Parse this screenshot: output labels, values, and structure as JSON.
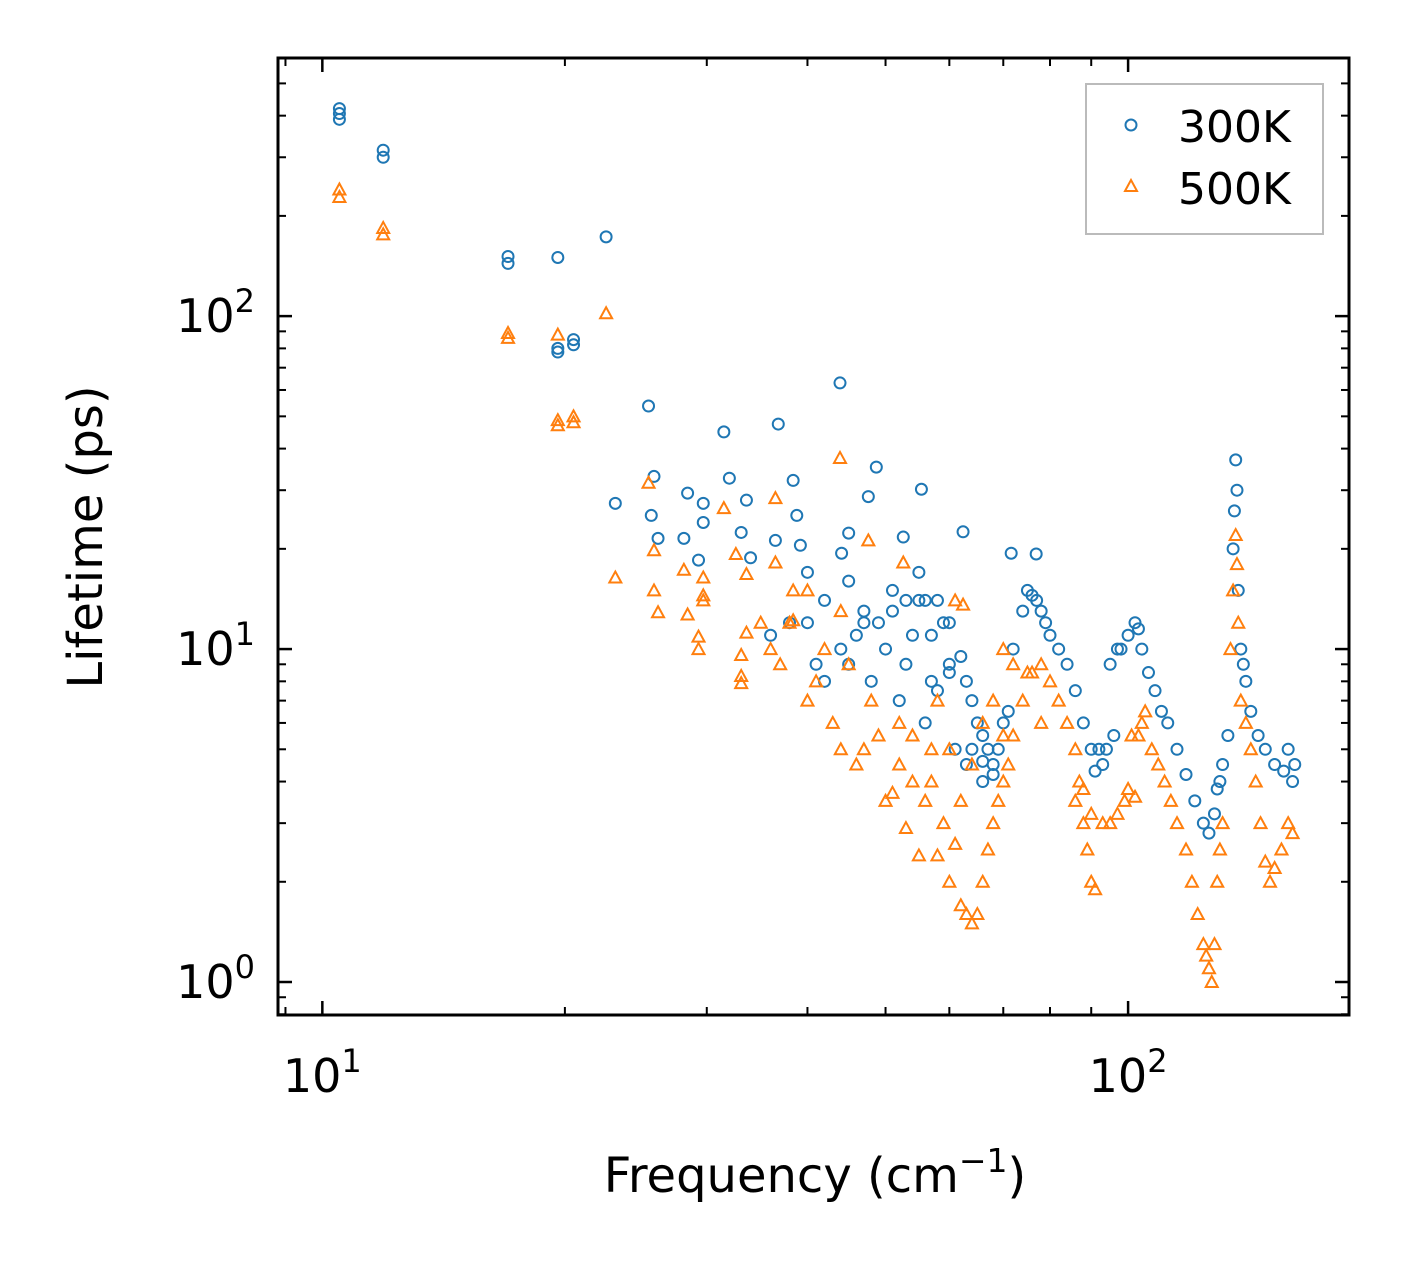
{
  "chart_data": {
    "type": "scatter",
    "title": "",
    "xlabel": "Frequency (cm",
    "xlabel_sup": "−1",
    "xlabel_end": ")",
    "ylabel": "Lifetime (ps)",
    "xscale": "log",
    "yscale": "log",
    "xlim": [
      8.81,
      188
    ],
    "ylim": [
      0.796,
      596
    ],
    "grid": false,
    "legend_position": "top-right",
    "x_ticks": [
      {
        "value": 10,
        "base": "10",
        "exp": "1"
      },
      {
        "value": 100,
        "base": "10",
        "exp": "2"
      }
    ],
    "y_ticks": [
      {
        "value": 1,
        "base": "10",
        "exp": "0"
      },
      {
        "value": 10,
        "base": "10",
        "exp": "1"
      },
      {
        "value": 100,
        "base": "10",
        "exp": "2"
      }
    ],
    "series": [
      {
        "name": "300K",
        "color": "#1f77b4",
        "marker": "circle",
        "points": [
          [
            10.5,
            420
          ],
          [
            10.5,
            406
          ],
          [
            10.5,
            390
          ],
          [
            11.9,
            315
          ],
          [
            11.9,
            300
          ],
          [
            17.0,
            151
          ],
          [
            17.0,
            144
          ],
          [
            19.6,
            150
          ],
          [
            19.6,
            80
          ],
          [
            19.6,
            78
          ],
          [
            20.5,
            85
          ],
          [
            20.5,
            82
          ],
          [
            22.5,
            173
          ],
          [
            23.1,
            27.4
          ],
          [
            25.4,
            53.7
          ],
          [
            25.8,
            33
          ],
          [
            25.6,
            25.2
          ],
          [
            26.1,
            21.5
          ],
          [
            28.1,
            21.5
          ],
          [
            28.4,
            29.4
          ],
          [
            29.7,
            27.4
          ],
          [
            29.3,
            18.5
          ],
          [
            29.7,
            24
          ],
          [
            31.5,
            44.9
          ],
          [
            32,
            32.6
          ],
          [
            33.1,
            22.4
          ],
          [
            33.6,
            28
          ],
          [
            34,
            18.8
          ],
          [
            36.8,
            47.4
          ],
          [
            36.5,
            21.2
          ],
          [
            38.4,
            32.1
          ],
          [
            38.8,
            25.2
          ],
          [
            39.2,
            20.5
          ],
          [
            43.9,
            63
          ],
          [
            44.1,
            19.4
          ],
          [
            45,
            22.3
          ],
          [
            48.7,
            35.2
          ],
          [
            47.6,
            28.7
          ],
          [
            55.4,
            30.2
          ],
          [
            52.6,
            21.7
          ],
          [
            62.4,
            22.5
          ],
          [
            76.9,
            19.3
          ],
          [
            71.6,
            19.4
          ],
          [
            36,
            11
          ],
          [
            38,
            12
          ],
          [
            40,
            17
          ],
          [
            42,
            14
          ],
          [
            45,
            16
          ],
          [
            47,
            13
          ],
          [
            49,
            12
          ],
          [
            51,
            15
          ],
          [
            53,
            14
          ],
          [
            55,
            17
          ],
          [
            56,
            14
          ],
          [
            57,
            11
          ],
          [
            60,
            12
          ],
          [
            40,
            12
          ],
          [
            41,
            9
          ],
          [
            42,
            8
          ],
          [
            44,
            10
          ],
          [
            45,
            9
          ],
          [
            46,
            11
          ],
          [
            47,
            12
          ],
          [
            48,
            8
          ],
          [
            50,
            10
          ],
          [
            51,
            13
          ],
          [
            52,
            7
          ],
          [
            53,
            9
          ],
          [
            54,
            11
          ],
          [
            55,
            14
          ],
          [
            56,
            6
          ],
          [
            57,
            8
          ],
          [
            58,
            14
          ],
          [
            59,
            12
          ],
          [
            60,
            9
          ],
          [
            61,
            5
          ],
          [
            63,
            4.5
          ],
          [
            66,
            4
          ],
          [
            68,
            4.2
          ],
          [
            58,
            7.5
          ],
          [
            60,
            8.5
          ],
          [
            62,
            9.5
          ],
          [
            63,
            8
          ],
          [
            64,
            7
          ],
          [
            65,
            6
          ],
          [
            66,
            5.5
          ],
          [
            67,
            5
          ],
          [
            68,
            4.5
          ],
          [
            69,
            5
          ],
          [
            70,
            6
          ],
          [
            71,
            6.5
          ],
          [
            64,
            5
          ],
          [
            66,
            4.6
          ],
          [
            72,
            10
          ],
          [
            74,
            13
          ],
          [
            75,
            15
          ],
          [
            76,
            14.5
          ],
          [
            77,
            14
          ],
          [
            78,
            13
          ],
          [
            79,
            12
          ],
          [
            80,
            11
          ],
          [
            82,
            10
          ],
          [
            84,
            9
          ],
          [
            86,
            7.5
          ],
          [
            88,
            6
          ],
          [
            90,
            5
          ],
          [
            92,
            5
          ],
          [
            94,
            5
          ],
          [
            96,
            5.5
          ],
          [
            95,
            9
          ],
          [
            97,
            10
          ],
          [
            93,
            4.5
          ],
          [
            91,
            4.3
          ],
          [
            98,
            10
          ],
          [
            100,
            11
          ],
          [
            102,
            12
          ],
          [
            103,
            11.5
          ],
          [
            104,
            10
          ],
          [
            106,
            8.5
          ],
          [
            108,
            7.5
          ],
          [
            110,
            6.5
          ],
          [
            112,
            6
          ],
          [
            115,
            5
          ],
          [
            118,
            4.2
          ],
          [
            121,
            3.5
          ],
          [
            124,
            3
          ],
          [
            126,
            2.8
          ],
          [
            128,
            3.2
          ],
          [
            129,
            3.8
          ],
          [
            130,
            4
          ],
          [
            131,
            4.5
          ],
          [
            133,
            5.5
          ],
          [
            135,
            20
          ],
          [
            135.5,
            26
          ],
          [
            136,
            37
          ],
          [
            136.5,
            30
          ],
          [
            137,
            15
          ],
          [
            138,
            10
          ],
          [
            139,
            9
          ],
          [
            140,
            8
          ],
          [
            142,
            6.5
          ],
          [
            145,
            5.5
          ],
          [
            148,
            5
          ],
          [
            152,
            4.5
          ],
          [
            156,
            4.3
          ],
          [
            160,
            4
          ],
          [
            161,
            4.5
          ],
          [
            158,
            5
          ]
        ]
      },
      {
        "name": "500K",
        "color": "#ff7f0e",
        "marker": "triangle",
        "points": [
          [
            10.5,
            240
          ],
          [
            10.5,
            228
          ],
          [
            11.9,
            184
          ],
          [
            11.9,
            176
          ],
          [
            17.0,
            89
          ],
          [
            17.0,
            86
          ],
          [
            19.6,
            88
          ],
          [
            19.6,
            48.7
          ],
          [
            19.6,
            47
          ],
          [
            20.5,
            50
          ],
          [
            20.5,
            48
          ],
          [
            22.5,
            102
          ],
          [
            23.1,
            16.4
          ],
          [
            25.4,
            31.6
          ],
          [
            25.8,
            19.8
          ],
          [
            25.8,
            15
          ],
          [
            26.1,
            12.9
          ],
          [
            28.1,
            17.3
          ],
          [
            28.4,
            12.7
          ],
          [
            29.7,
            16.4
          ],
          [
            29.7,
            14.5
          ],
          [
            29.7,
            14
          ],
          [
            29.3,
            10.9
          ],
          [
            29.3,
            10
          ],
          [
            31.5,
            26.5
          ],
          [
            32.6,
            19.3
          ],
          [
            33.1,
            9.6
          ],
          [
            33.1,
            8.3
          ],
          [
            33.1,
            7.9
          ],
          [
            33.6,
            16.8
          ],
          [
            33.6,
            11.2
          ],
          [
            36.5,
            28.4
          ],
          [
            36.5,
            18.2
          ],
          [
            38.4,
            15
          ],
          [
            38.4,
            12.2
          ],
          [
            43.9,
            37.5
          ],
          [
            47.6,
            21.2
          ],
          [
            52.6,
            18.2
          ],
          [
            62.4,
            13.6
          ],
          [
            35,
            12
          ],
          [
            36,
            10
          ],
          [
            37,
            9
          ],
          [
            38,
            12
          ],
          [
            40,
            7
          ],
          [
            41,
            8
          ],
          [
            42,
            10
          ],
          [
            43,
            6
          ],
          [
            44,
            5
          ],
          [
            45,
            9
          ],
          [
            46,
            4.5
          ],
          [
            47,
            5
          ],
          [
            48,
            7
          ],
          [
            49,
            5.5
          ],
          [
            50,
            3.5
          ],
          [
            51,
            3.7
          ],
          [
            52,
            6
          ],
          [
            53,
            2.9
          ],
          [
            54,
            4
          ],
          [
            55,
            2.4
          ],
          [
            57,
            5
          ],
          [
            58,
            7
          ],
          [
            60,
            5
          ],
          [
            62,
            3.5
          ],
          [
            64,
            4.5
          ],
          [
            66,
            6
          ],
          [
            68,
            7
          ],
          [
            70,
            10
          ],
          [
            72,
            9
          ],
          [
            75,
            8.5
          ],
          [
            78,
            6
          ],
          [
            61,
            14
          ],
          [
            40,
            15
          ],
          [
            44,
            13
          ],
          [
            52,
            4.5
          ],
          [
            54,
            5.5
          ],
          [
            56,
            3.5
          ],
          [
            57,
            4
          ],
          [
            58,
            2.4
          ],
          [
            59,
            3
          ],
          [
            60,
            2
          ],
          [
            61,
            2.6
          ],
          [
            62,
            1.7
          ],
          [
            63,
            1.6
          ],
          [
            64,
            1.5
          ],
          [
            65,
            1.6
          ],
          [
            66,
            2
          ],
          [
            67,
            2.5
          ],
          [
            68,
            3
          ],
          [
            69,
            3.5
          ],
          [
            70,
            4
          ],
          [
            71,
            4.5
          ],
          [
            70,
            5.5
          ],
          [
            72,
            5.5
          ],
          [
            74,
            7
          ],
          [
            76,
            8.5
          ],
          [
            78,
            9
          ],
          [
            80,
            8
          ],
          [
            82,
            7
          ],
          [
            84,
            6
          ],
          [
            86,
            5
          ],
          [
            87,
            4
          ],
          [
            88,
            3
          ],
          [
            89,
            2.5
          ],
          [
            90,
            2
          ],
          [
            91,
            1.9
          ],
          [
            86,
            3.5
          ],
          [
            88,
            3.8
          ],
          [
            90,
            3.2
          ],
          [
            93,
            3
          ],
          [
            95,
            3
          ],
          [
            97,
            3.2
          ],
          [
            99,
            3.5
          ],
          [
            100,
            3.8
          ],
          [
            102,
            3.6
          ],
          [
            101,
            5.5
          ],
          [
            103,
            5.5
          ],
          [
            104,
            6
          ],
          [
            105,
            6.5
          ],
          [
            107,
            5
          ],
          [
            109,
            4.5
          ],
          [
            111,
            4
          ],
          [
            113,
            3.5
          ],
          [
            115,
            3
          ],
          [
            118,
            2.5
          ],
          [
            120,
            2
          ],
          [
            122,
            1.6
          ],
          [
            124,
            1.3
          ],
          [
            125,
            1.2
          ],
          [
            126,
            1.1
          ],
          [
            127,
            1.0
          ],
          [
            128,
            1.3
          ],
          [
            129,
            2
          ],
          [
            130,
            2.5
          ],
          [
            131,
            3
          ],
          [
            134,
            10
          ],
          [
            135,
            15
          ],
          [
            136,
            22
          ],
          [
            136.5,
            18
          ],
          [
            137,
            12
          ],
          [
            138,
            7
          ],
          [
            140,
            6
          ],
          [
            142,
            5
          ],
          [
            144,
            4
          ],
          [
            146,
            3
          ],
          [
            148,
            2.3
          ],
          [
            150,
            2
          ],
          [
            152,
            2.2
          ],
          [
            155,
            2.5
          ],
          [
            158,
            3
          ],
          [
            160,
            2.8
          ]
        ]
      }
    ]
  }
}
